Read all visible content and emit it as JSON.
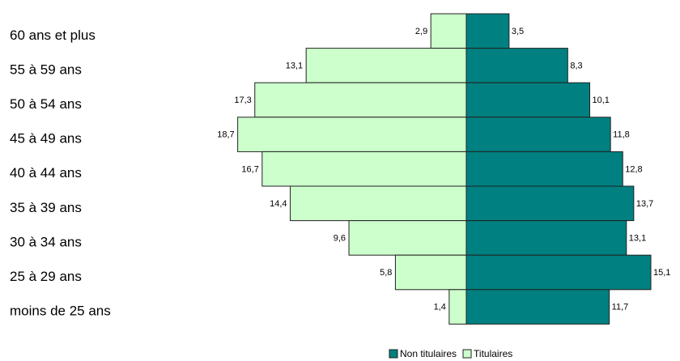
{
  "chart_data": {
    "type": "pyramid",
    "categories": [
      "60 ans et plus",
      "55 à 59 ans",
      "50 à 54 ans",
      "45 à 49 ans",
      "40 à 44 ans",
      "35 à 39 ans",
      "30 à 34 ans",
      "25 à 29 ans",
      "moins de 25 ans"
    ],
    "series": [
      {
        "name": "Non titulaires",
        "color": "#008080",
        "side": "right",
        "values": [
          3.5,
          8.3,
          10.1,
          11.8,
          12.8,
          13.7,
          13.1,
          15.1,
          11.7
        ],
        "value_labels": [
          "3,5",
          "8,3",
          "10,1",
          "11,8",
          "12,8",
          "13,7",
          "13,1",
          "15,1",
          "11,7"
        ]
      },
      {
        "name": "Titulaires",
        "color": "#ccffcc",
        "side": "left",
        "values": [
          2.9,
          13.1,
          17.3,
          18.7,
          16.7,
          14.4,
          9.6,
          5.8,
          1.4
        ],
        "value_labels": [
          "2,9",
          "13,1",
          "17,3",
          "18,7",
          "16,7",
          "14,4",
          "9,6",
          "5,8",
          "1,4"
        ]
      }
    ],
    "legend": "bottom"
  }
}
